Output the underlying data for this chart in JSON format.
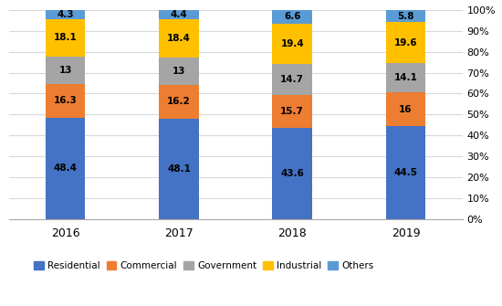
{
  "years": [
    "2016",
    "2017",
    "2018",
    "2019"
  ],
  "categories": [
    "Residential",
    "Commercial",
    "Government",
    "Industrial",
    "Others"
  ],
  "colors": [
    "#4472C4",
    "#ED7D31",
    "#A5A5A5",
    "#FFC000",
    "#5B9BD5"
  ],
  "values": {
    "Residential": [
      48.4,
      48.1,
      43.6,
      44.5
    ],
    "Commercial": [
      16.3,
      16.2,
      15.7,
      16.0
    ],
    "Government": [
      13.0,
      13.0,
      14.7,
      14.1
    ],
    "Industrial": [
      18.1,
      18.4,
      19.4,
      19.6
    ],
    "Others": [
      4.3,
      4.4,
      6.6,
      5.8
    ]
  },
  "ylim": [
    0,
    100
  ],
  "bar_width": 0.35,
  "label_colors": {
    "Residential": "#000000",
    "Commercial": "#000000",
    "Government": "#000000",
    "Industrial": "#000000",
    "Others": "#000000"
  },
  "grid_color": "#D9D9D9",
  "background_color": "#FFFFFF"
}
